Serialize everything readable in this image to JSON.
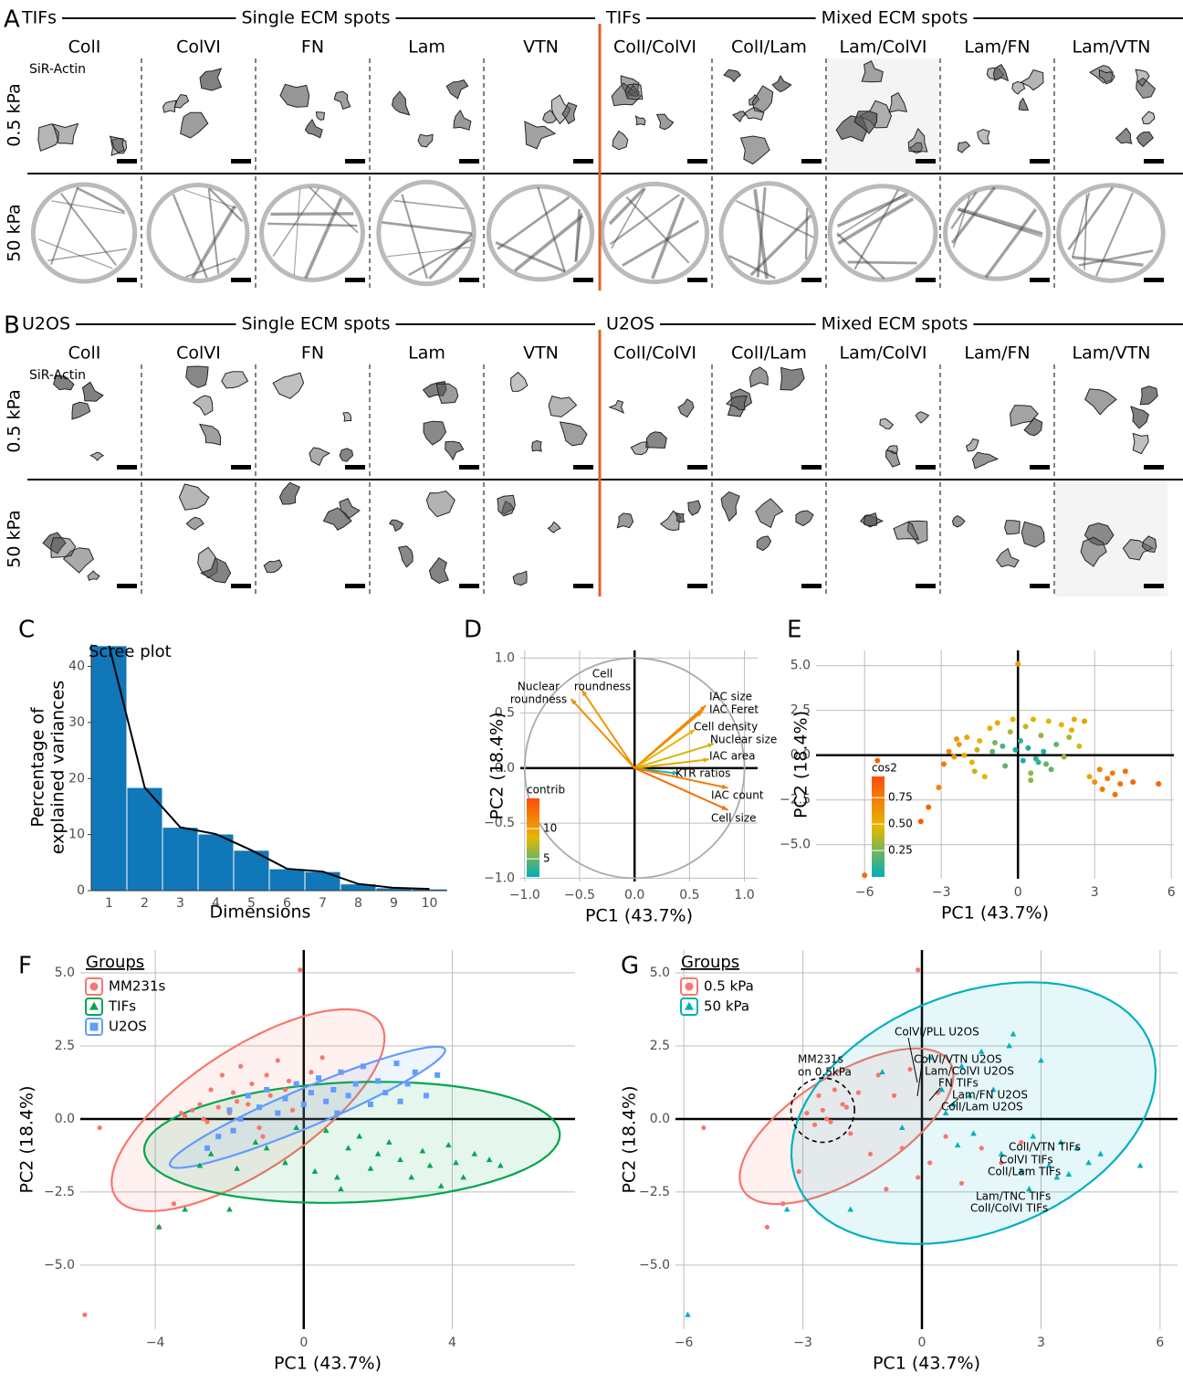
{
  "panels": {
    "A": {
      "letter": "A",
      "group": "TIFs",
      "single": "Single ECM spots",
      "group2": "TIFs",
      "mixed": "Mixed ECM spots",
      "columns": [
        "ColI",
        "ColVI",
        "FN",
        "Lam",
        "VTN",
        "ColI/ColVI",
        "ColI/Lam",
        "Lam/ColVI",
        "Lam/FN",
        "Lam/VTN"
      ],
      "rows": [
        "0.5 kPa",
        "50 kPa"
      ],
      "stain": "SiR-Actin"
    },
    "B": {
      "letter": "B",
      "group": "U2OS",
      "single": "Single ECM spots",
      "group2": "U2OS",
      "mixed": "Mixed ECM spots",
      "columns": [
        "ColI",
        "ColVI",
        "FN",
        "Lam",
        "VTN",
        "ColI/ColVI",
        "ColI/Lam",
        "Lam/ColVI",
        "Lam/FN",
        "Lam/VTN"
      ],
      "rows": [
        "0.5 kPa",
        "50 kPa"
      ],
      "stain": "SiR-Actin"
    }
  },
  "chart_data": [
    {
      "panel": "C",
      "type": "bar",
      "title": "Scree plot",
      "x_label": "Dimensions",
      "y_label": [
        "Percentage of",
        "explained variances"
      ],
      "categories": [
        "1",
        "2",
        "3",
        "4",
        "5",
        "6",
        "7",
        "8",
        "9",
        "10"
      ],
      "values": [
        43.7,
        18.4,
        11.3,
        10.1,
        7.2,
        3.9,
        3.4,
        1.2,
        0.5,
        0.3
      ],
      "color": "#1077b8",
      "line_color": "#000000",
      "ylim": [
        0,
        44
      ],
      "yticks": [
        0,
        10,
        20,
        30,
        40
      ]
    },
    {
      "panel": "D",
      "type": "vector",
      "x_label": "PC1 (43.7%)",
      "y_label": "PC2 (18.4%)",
      "xlim": [
        -1.04,
        1.12
      ],
      "ylim": [
        -1.03,
        1.07
      ],
      "grid": true,
      "xticks": [
        {
          "value": -1,
          "label": "−1.0"
        },
        {
          "value": -0.5,
          "label": "−0.5"
        },
        {
          "value": 0,
          "label": "0.0"
        },
        0.5,
        {
          "value": 1,
          "label": "1.0"
        }
      ],
      "yticks": [
        {
          "value": -1,
          "label": "−1.0"
        },
        {
          "value": -0.5,
          "label": "−0.5"
        },
        {
          "value": 0,
          "label": "0.0"
        },
        0.5,
        {
          "value": 1,
          "label": "1.0"
        }
      ],
      "labels": [
        [
          "Nuclear",
          "roundness"
        ],
        [
          "Cell",
          "roundness"
        ],
        [
          "IAC size"
        ],
        [
          "IAC Feret"
        ],
        [
          "Cell density"
        ],
        [
          "Nuclear size"
        ],
        [
          "IAC area"
        ],
        [
          "KTR ratios"
        ],
        [
          "IAC count"
        ],
        [
          "Cell size"
        ]
      ],
      "x": [
        -0.58,
        -0.48,
        0.65,
        0.62,
        0.55,
        0.72,
        0.68,
        0.4,
        0.85,
        0.85
      ],
      "y": [
        0.63,
        0.71,
        0.57,
        0.52,
        0.35,
        0.22,
        0.08,
        -0.05,
        -0.18,
        -0.38
      ],
      "contrib": [
        11,
        10.5,
        11.5,
        11,
        8.5,
        8,
        9.5,
        3,
        12,
        13
      ],
      "colorscale": [
        "#00AFBB",
        "#E7B800",
        "#FC4E07"
      ],
      "legend": {
        "title": "contrib",
        "ticks": [
          5,
          10
        ],
        "clim": [
          2,
          15
        ]
      }
    },
    {
      "panel": "E",
      "type": "scatter",
      "x_label": "PC1 (43.7%)",
      "y_label": "PC2 (18.4%)",
      "xlim": [
        -7.9,
        6.1
      ],
      "ylim": [
        -6.9,
        5.85
      ],
      "grid": true,
      "xticks": [
        {
          "value": -6,
          "label": "−6"
        },
        {
          "value": -3,
          "label": "−3"
        },
        0,
        3,
        6
      ],
      "yticks": [
        {
          "value": 5,
          "label": "5.0"
        },
        2.5,
        {
          "value": 0,
          "label": "0.0"
        },
        {
          "value": -2.5,
          "label": "−2.5"
        },
        {
          "value": -5,
          "label": "−5.0"
        }
      ],
      "x": [
        -5.5,
        -3.8,
        -3.5,
        -3.1,
        -2.9,
        -2.7,
        -2.5,
        -2.3,
        -2.1,
        -2.0,
        -1.8,
        -1.6,
        -1.5,
        -1.3,
        -1.1,
        -1.0,
        -0.8,
        -0.6,
        -0.5,
        -0.3,
        -0.2,
        0.0,
        0.1,
        0.2,
        0.3,
        0.4,
        0.5,
        0.6,
        0.8,
        0.9,
        1.0,
        1.2,
        1.3,
        1.5,
        1.7,
        1.8,
        2.0,
        2.2,
        2.4,
        2.6,
        2.8,
        3.0,
        3.2,
        3.3,
        3.5,
        3.7,
        3.8,
        4.0,
        4.2,
        4.5,
        5.5,
        -0.1,
        -6.0,
        -2.4,
        0.5,
        1.1,
        -1.7,
        2.1,
        -0.9,
        0.7
      ],
      "y": [
        -0.3,
        -3.7,
        -2.9,
        -1.8,
        -0.5,
        0.2,
        -0.1,
        0.6,
        0.0,
        1.0,
        -0.4,
        0.3,
        0.8,
        -1.2,
        1.5,
        0.2,
        1.8,
        0.5,
        -0.6,
        1.3,
        2.0,
        5.1,
        0.8,
        -0.3,
        1.6,
        0.4,
        -1.0,
        2.0,
        -0.4,
        1.1,
        0.2,
        1.9,
        -0.8,
        0.6,
        1.7,
        -0.1,
        1.0,
        2.0,
        0.5,
        1.9,
        -1.2,
        -1.5,
        -0.8,
        -1.9,
        -1.3,
        -1.0,
        -2.2,
        -1.6,
        -0.9,
        -1.5,
        -1.6,
        0.3,
        -6.7,
        0.9,
        -1.4,
        -0.5,
        -0.9,
        1.4,
        0.7,
        -0.2
      ],
      "cos2": [
        0.85,
        0.9,
        0.85,
        0.7,
        0.75,
        0.7,
        0.6,
        0.6,
        0.5,
        0.55,
        0.5,
        0.4,
        0.45,
        0.5,
        0.5,
        0.2,
        0.55,
        0.15,
        0.2,
        0.35,
        0.5,
        0.6,
        0.1,
        0.05,
        0.4,
        0.05,
        0.3,
        0.5,
        0.1,
        0.3,
        0.05,
        0.45,
        0.2,
        0.2,
        0.45,
        0.3,
        0.35,
        0.55,
        0.45,
        0.6,
        0.55,
        0.65,
        0.7,
        0.75,
        0.75,
        0.75,
        0.8,
        0.8,
        0.8,
        0.85,
        0.85,
        0.05,
        0.8,
        0.6,
        0.3,
        0.2,
        0.4,
        0.5,
        0.25,
        0.1
      ],
      "colorscale": [
        "#00AFBB",
        "#E7B800",
        "#FC4E07"
      ],
      "legend": {
        "title": "cos2",
        "ticks": [
          0.25,
          {
            "value": 0.5,
            "label": "0.50"
          },
          0.75
        ],
        "clim": [
          0,
          0.95
        ]
      }
    },
    {
      "panel": "F",
      "type": "scatter",
      "x_label": "PC1 (43.7%)",
      "y_label": "PC2 (18.4%)",
      "xlim": [
        -6.02,
        7.31
      ],
      "ylim": [
        -7.19,
        5.78
      ],
      "grid": true,
      "xticks": [
        {
          "value": -4,
          "label": "−4"
        },
        0,
        4
      ],
      "yticks": [
        {
          "value": 5,
          "label": "5.0"
        },
        2.5,
        {
          "value": 0,
          "label": "0.0"
        },
        {
          "value": -2.5,
          "label": "−2.5"
        },
        {
          "value": -5,
          "label": "−5.0"
        }
      ],
      "legend_title": "Groups",
      "series": [
        {
          "name": "MM231s",
          "color": "#f8766d",
          "shape": "circle",
          "x": [
            -5.5,
            -3.9,
            -3.5,
            -3.2,
            -3.0,
            -2.8,
            -2.6,
            -2.5,
            -2.3,
            -2.2,
            -2.0,
            -1.9,
            -1.7,
            -1.5,
            -1.4,
            -1.2,
            -1.0,
            -0.9,
            -0.7,
            -0.5,
            -0.3,
            -0.1,
            0.2,
            0.5,
            -2.7,
            -1.8,
            -1.1,
            -0.4,
            -5.9,
            -3.3
          ],
          "y": [
            -0.3,
            -3.7,
            -2.9,
            0.1,
            0.3,
            0.5,
            -0.1,
            1.0,
            0.4,
            1.5,
            0.2,
            0.9,
            1.8,
            0.5,
            1.2,
            -0.3,
            1.5,
            0.8,
            2.0,
            1.0,
            0.3,
            5.1,
            1.6,
            2.1,
            0.0,
            0.6,
            -0.6,
            1.3,
            -6.7,
            0.2
          ],
          "ellipse": {
            "center": [
              -1.5,
              0.3
            ],
            "axis_a": [
              3.4,
              3.2
            ],
            "axis_b": [
              -1.4,
              1.3
            ]
          }
        },
        {
          "name": "TIFs",
          "color": "#00a650",
          "shape": "triangle",
          "x": [
            -3.9,
            -3.2,
            -2.8,
            -2.5,
            -2.0,
            -1.8,
            -1.3,
            -1.0,
            -0.5,
            -0.2,
            0.3,
            0.6,
            0.9,
            1.2,
            1.5,
            1.8,
            2.0,
            2.3,
            2.6,
            2.9,
            3.2,
            3.4,
            3.7,
            3.9,
            4.1,
            4.3,
            4.6,
            5.0,
            5.3,
            1.0
          ],
          "y": [
            -3.7,
            -3.1,
            -1.6,
            -1.2,
            -3.1,
            -1.7,
            -0.8,
            -1.0,
            -1.5,
            -0.3,
            -1.8,
            -0.4,
            -2.0,
            -1.0,
            -0.6,
            -1.7,
            -1.2,
            -0.8,
            -1.4,
            -2.0,
            -1.1,
            -1.6,
            -2.3,
            -0.9,
            -1.5,
            -2.0,
            -1.2,
            -1.4,
            -1.6,
            -2.4
          ],
          "ellipse": {
            "center": [
              1.3,
              -0.8
            ],
            "axis_a": [
              5.6,
              0.3
            ],
            "axis_b": [
              -0.1,
              2.05
            ]
          }
        },
        {
          "name": "U2OS",
          "color": "#619cff",
          "shape": "square",
          "x": [
            -2.6,
            -2.3,
            -2.0,
            -1.7,
            -1.5,
            -1.2,
            -1.0,
            -0.7,
            -0.5,
            -0.2,
            0.0,
            0.2,
            0.4,
            0.6,
            0.8,
            1.0,
            1.2,
            1.4,
            1.6,
            1.8,
            2.0,
            2.2,
            2.5,
            2.8,
            3.0,
            3.3,
            3.6,
            -1.9,
            0.9,
            2.6
          ],
          "y": [
            -1.0,
            -0.6,
            0.3,
            0.0,
            0.8,
            0.4,
            1.0,
            0.2,
            0.7,
            1.2,
            0.5,
            0.9,
            1.4,
            0.6,
            1.0,
            1.6,
            0.8,
            1.2,
            1.8,
            0.5,
            1.3,
            0.9,
            1.9,
            1.2,
            1.6,
            0.8,
            1.5,
            -0.4,
            0.2,
            0.6
          ],
          "ellipse": {
            "center": [
              0.1,
              0.4
            ],
            "axis_a": [
              3.7,
              2.0
            ],
            "axis_b": [
              -0.3,
              0.55
            ]
          }
        }
      ]
    },
    {
      "panel": "G",
      "type": "scatter",
      "x_label": "PC1 (43.7%)",
      "y_label": "PC2 (18.4%)",
      "xlim": [
        -6.21,
        6.44
      ],
      "ylim": [
        -7.19,
        5.78
      ],
      "grid": true,
      "xticks": [
        {
          "value": -6,
          "label": "−6"
        },
        {
          "value": -3,
          "label": "−3"
        },
        0,
        3,
        6
      ],
      "yticks": [
        {
          "value": 5,
          "label": "5.0"
        },
        2.5,
        {
          "value": 0,
          "label": "0.0"
        },
        {
          "value": -2.5,
          "label": "−2.5"
        },
        {
          "value": -5,
          "label": "−5.0"
        }
      ],
      "legend_title": "Groups",
      "series": [
        {
          "name": "0.5 kPa",
          "color": "#f8766d",
          "shape": "circle",
          "x": [
            -5.5,
            -3.9,
            -3.5,
            -3.1,
            -2.9,
            -2.7,
            -2.6,
            -2.5,
            -2.3,
            -2.2,
            -2.0,
            -1.8,
            -1.6,
            -1.3,
            -1.1,
            -0.9,
            -0.7,
            -0.5,
            -0.3,
            -0.1,
            0.2,
            0.6,
            1.0,
            1.5,
            2.0,
            2.5,
            -2.4,
            -1.9,
            -0.1,
            0.4
          ],
          "y": [
            -0.3,
            -3.7,
            -2.9,
            -1.8,
            0.2,
            -0.2,
            0.8,
            0.3,
            -0.1,
            1.0,
            0.5,
            -0.5,
            0.9,
            -1.2,
            1.5,
            -2.4,
            0.8,
            -1.0,
            1.7,
            5.1,
            -1.5,
            -0.6,
            -2.2,
            -1.0,
            -1.5,
            -0.8,
            0.0,
            0.4,
            -2.0,
            0.9
          ],
          "ellipse": {
            "center": [
              -1.9,
              -0.25
            ],
            "axis_a": [
              2.6,
              2.2
            ],
            "axis_b": [
              -0.7,
              1.5
            ]
          }
        },
        {
          "name": "50 kPa",
          "color": "#00b0c0",
          "shape": "triangle",
          "x": [
            -5.9,
            -3.4,
            -1.8,
            -0.5,
            0.2,
            0.5,
            0.8,
            1.0,
            1.3,
            1.5,
            1.8,
            2.0,
            2.2,
            2.5,
            2.8,
            3.0,
            3.2,
            3.5,
            3.7,
            3.9,
            4.2,
            4.5,
            5.5,
            0.6,
            1.2,
            2.7,
            3.4,
            -1.0,
            2.3,
            0.9
          ],
          "y": [
            -6.7,
            -3.1,
            -3.1,
            -0.3,
            2.1,
            1.0,
            0.5,
            1.8,
            -0.5,
            2.3,
            1.0,
            -1.2,
            2.5,
            -1.8,
            -0.6,
            2.0,
            -1.6,
            -0.8,
            -1.9,
            -1.0,
            -1.5,
            -1.2,
            -1.6,
            0.2,
            0.8,
            -2.4,
            -2.0,
            1.6,
            2.9,
            -0.9
          ],
          "ellipse": {
            "center": [
              1.3,
              0.2
            ],
            "axis_a": [
              4.5,
              2.2
            ],
            "axis_b": [
              -0.9,
              3.9
            ]
          }
        }
      ],
      "highlight": {
        "center": [
          -2.5,
          0.3
        ],
        "axis_a": [
          0.8,
          0
        ],
        "axis_b": [
          0,
          1.1
        ]
      },
      "highlight_label": [
        "MM231s",
        "on 0.5kPa"
      ],
      "annotations": [
        "ColVI/PLL U2OS",
        "ColVI/VTN U2OS",
        "Lam/ColVI U2OS",
        "FN TIFs",
        "Lam/FN U2OS",
        "ColI/Lam U2OS",
        "ColI/VTN TIFs",
        "ColVI TIFs",
        "ColI/Lam TIFs",
        "Lam/TNC TIFs",
        "ColI/ColVI TIFs"
      ]
    }
  ]
}
